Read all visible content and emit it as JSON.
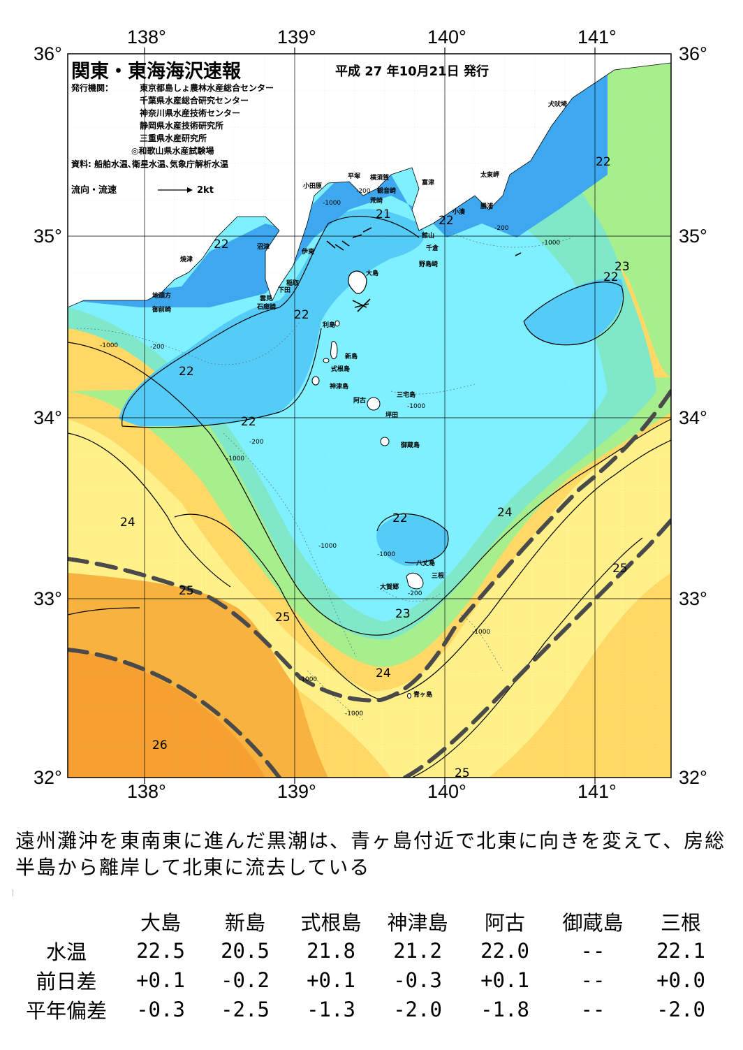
{
  "map": {
    "title": "関東・東海海沢速報",
    "issue_date": "平成 27 年10月21日 発行",
    "publisher_label": "発行機関：",
    "publishers": [
      "東京都島しょ農林水産総合センター",
      "千葉県水産総合研究センター",
      "神奈川県水産技術センター",
      "静岡県水産技術研究所",
      "三重県水産研究所",
      "◎和歌山県水産試験場"
    ],
    "sources": "資料: 船舶水温､衛星水温､気象庁解析水温",
    "flow_legend_label": "流向・流速",
    "flow_legend_speed": "2kt",
    "lon_labels": [
      "138°",
      "139°",
      "140°",
      "141°"
    ],
    "lat_labels": [
      "36°",
      "35°",
      "34°",
      "33°",
      "32°"
    ],
    "places": [
      {
        "name": "犬吠埼"
      },
      {
        "name": "太東岬"
      },
      {
        "name": "勝浦"
      },
      {
        "name": "小湊"
      },
      {
        "name": "富津"
      },
      {
        "name": "横須賀"
      },
      {
        "name": "観音崎"
      },
      {
        "name": "荒崎"
      },
      {
        "name": "平塚"
      },
      {
        "name": "小田原"
      },
      {
        "name": "館山"
      },
      {
        "name": "千倉"
      },
      {
        "name": "野島崎"
      },
      {
        "name": "沼津"
      },
      {
        "name": "伊東"
      },
      {
        "name": "焼津"
      },
      {
        "name": "稲取"
      },
      {
        "name": "下田"
      },
      {
        "name": "雲見"
      },
      {
        "name": "石廊崎"
      },
      {
        "name": "地頭方"
      },
      {
        "name": "御前崎"
      },
      {
        "name": "大島"
      },
      {
        "name": "利島"
      },
      {
        "name": "新島"
      },
      {
        "name": "式根島"
      },
      {
        "name": "神津島"
      },
      {
        "name": "三宅島"
      },
      {
        "name": "阿古"
      },
      {
        "name": "坪田"
      },
      {
        "name": "御蔵島"
      },
      {
        "name": "八丈島"
      },
      {
        "name": "三根"
      },
      {
        "name": "大賀郷"
      },
      {
        "name": "青ヶ島"
      }
    ],
    "isotherm_labels": [
      {
        "text": "22"
      },
      {
        "text": "22"
      },
      {
        "text": "22"
      },
      {
        "text": "22"
      },
      {
        "text": "22"
      },
      {
        "text": "22"
      },
      {
        "text": "22"
      },
      {
        "text": "21"
      },
      {
        "text": "23"
      },
      {
        "text": "22"
      },
      {
        "text": "24"
      },
      {
        "text": "24"
      },
      {
        "text": "25"
      },
      {
        "text": "25"
      },
      {
        "text": "25"
      },
      {
        "text": "23"
      },
      {
        "text": "24"
      },
      {
        "text": "26"
      },
      {
        "text": "25"
      }
    ],
    "depth_labels": [
      "-200",
      "-1000"
    ],
    "legend_colors": {
      "land": "#ffffff",
      "t21": "#3399ee",
      "t22": "#55ccf8",
      "t22_5": "#7ff0ff",
      "t23": "#7fe8c8",
      "t24": "#9df08a",
      "t24_5": "#ffff88",
      "t25": "#ffd866",
      "t26": "#f5a030"
    }
  },
  "summary": "遠州灘沖を東南東に進んだ黒潮は、青ヶ島付近で北東に向きを変えて、房総半島から離岸して北東に流去している",
  "table": {
    "stations": [
      "大島",
      "新島",
      "式根島",
      "神津島",
      "阿古",
      "御蔵島",
      "三根"
    ],
    "rows": [
      {
        "label": "水温",
        "values": [
          "22.5",
          "20.5",
          "21.8",
          "21.2",
          "22.0",
          "--",
          "22.1"
        ]
      },
      {
        "label": "前日差",
        "values": [
          "+0.1",
          "-0.2",
          "+0.1",
          "-0.3",
          "+0.1",
          "--",
          "+0.0"
        ]
      },
      {
        "label": "平年偏差",
        "values": [
          "-0.3",
          "-2.5",
          "-1.3",
          "-2.0",
          "-1.8",
          "--",
          "-2.0"
        ]
      }
    ]
  }
}
